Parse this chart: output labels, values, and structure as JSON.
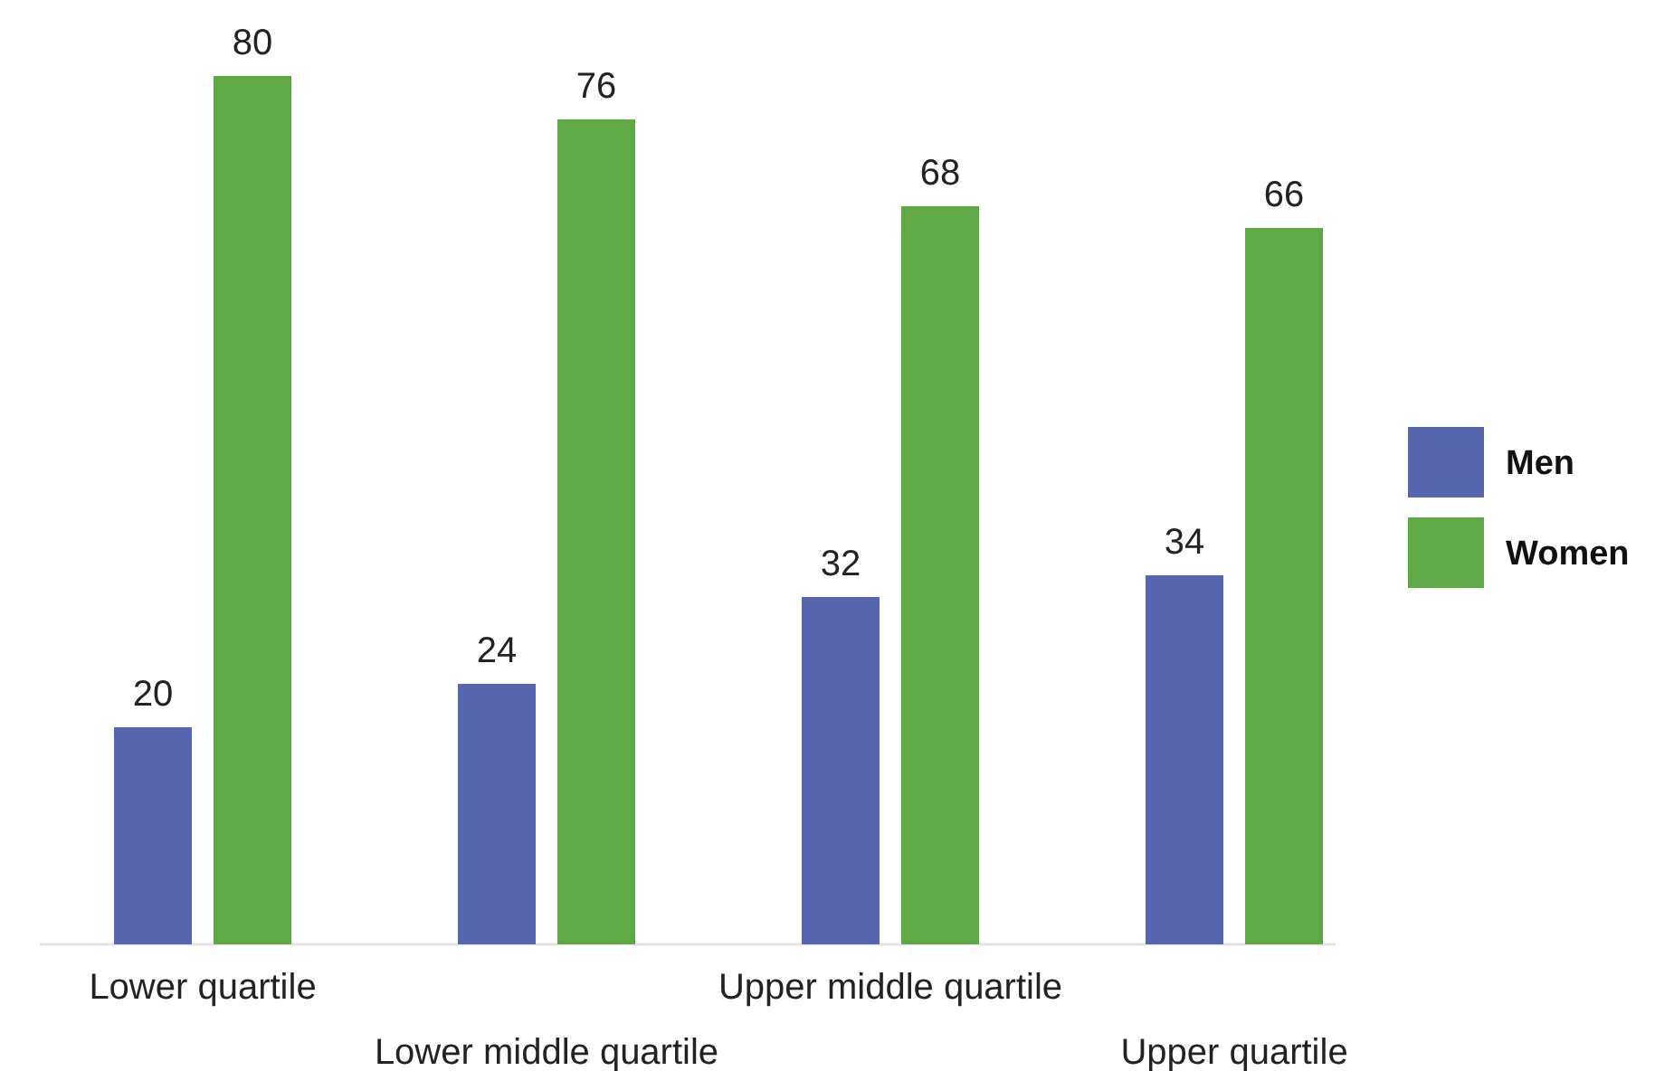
{
  "chart_data": {
    "type": "bar",
    "categories": [
      "Lower quartile",
      "Lower middle quartile",
      "Upper middle quartile",
      "Upper quartile"
    ],
    "series": [
      {
        "name": "Men",
        "color": "#5565b0",
        "values": [
          20,
          24,
          32,
          34
        ]
      },
      {
        "name": "Women",
        "color": "#5ea845",
        "values": [
          80,
          76,
          68,
          66
        ]
      }
    ],
    "data_labels": true,
    "legend": "right",
    "grid": false
  }
}
